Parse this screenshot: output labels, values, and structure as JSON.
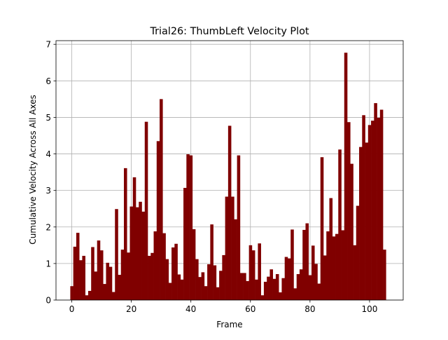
{
  "chart_data": {
    "type": "bar",
    "title": "Trial26: ThumbLeft Velocity Plot",
    "xlabel": "Frame",
    "ylabel": "Cumulative Velocity Across All Axes",
    "xlim": [
      -5.3,
      111.3
    ],
    "ylim": [
      0,
      7.1
    ],
    "xticks": [
      0,
      20,
      40,
      60,
      80,
      100
    ],
    "yticks": [
      0,
      1,
      2,
      3,
      4,
      5,
      6,
      7
    ],
    "grid": true,
    "bar_color": "#800000",
    "grid_color": "#b0b0b0",
    "x": [
      0,
      1,
      2,
      3,
      4,
      5,
      6,
      7,
      8,
      9,
      10,
      11,
      12,
      13,
      14,
      15,
      16,
      17,
      18,
      19,
      20,
      21,
      22,
      23,
      24,
      25,
      26,
      27,
      28,
      29,
      30,
      31,
      32,
      33,
      34,
      35,
      36,
      37,
      38,
      39,
      40,
      41,
      42,
      43,
      44,
      45,
      46,
      47,
      48,
      49,
      50,
      51,
      52,
      53,
      54,
      55,
      56,
      57,
      58,
      59,
      60,
      61,
      62,
      63,
      64,
      65,
      66,
      67,
      68,
      69,
      70,
      71,
      72,
      73,
      74,
      75,
      76,
      77,
      78,
      79,
      80,
      81,
      82,
      83,
      84,
      85,
      86,
      87,
      88,
      89,
      90,
      91,
      92,
      93,
      94,
      95,
      96,
      97,
      98,
      99,
      100,
      101,
      102,
      103,
      104,
      105,
      106
    ],
    "values": [
      0.38,
      1.46,
      1.84,
      1.09,
      1.21,
      0.13,
      0.25,
      1.45,
      0.78,
      1.63,
      1.36,
      0.44,
      1.02,
      0.91,
      0.22,
      2.49,
      0.69,
      1.38,
      3.61,
      1.3,
      2.56,
      3.36,
      2.54,
      2.69,
      2.42,
      4.88,
      1.21,
      1.29,
      1.88,
      4.35,
      5.5,
      1.83,
      1.12,
      0.47,
      1.44,
      1.54,
      0.7,
      0.56,
      3.07,
      3.99,
      3.96,
      1.94,
      1.12,
      0.63,
      0.76,
      0.38,
      0.98,
      2.07,
      0.95,
      0.35,
      0.8,
      1.23,
      2.83,
      4.77,
      2.83,
      2.21,
      3.96,
      0.74,
      0.74,
      0.52,
      1.5,
      1.36,
      0.56,
      1.55,
      0.13,
      0.5,
      0.64,
      0.84,
      0.58,
      0.71,
      0.21,
      0.6,
      1.18,
      1.14,
      1.93,
      0.32,
      0.71,
      0.84,
      1.92,
      2.1,
      0.68,
      1.49,
      0.99,
      0.45,
      3.91,
      1.22,
      1.88,
      2.79,
      1.74,
      1.81,
      4.12,
      1.91,
      6.77,
      4.87,
      3.73,
      1.5,
      2.58,
      4.19,
      5.06,
      4.31,
      4.79,
      4.91,
      5.39,
      4.99,
      5.21,
      1.38,
      0.0
    ]
  }
}
